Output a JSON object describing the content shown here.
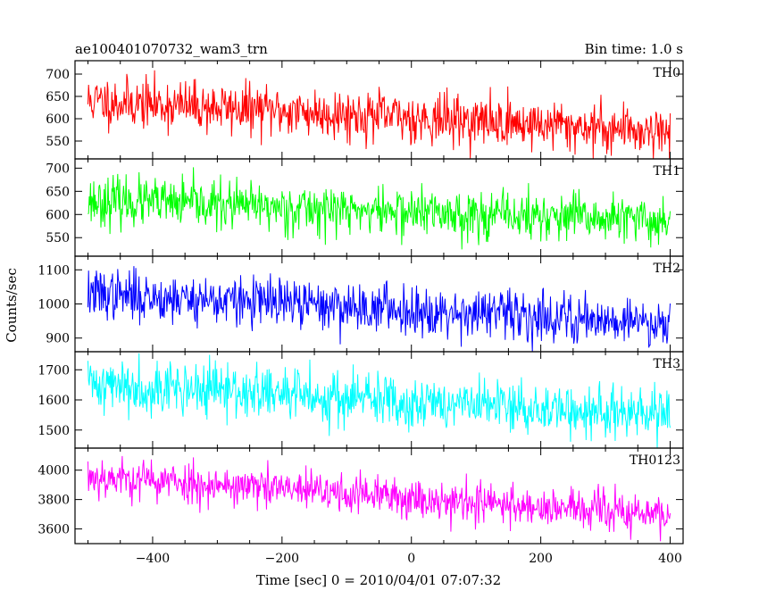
{
  "header": {
    "title": "ae100401070732_wam3_trn",
    "bin_time": "Bin time: 1.0 s"
  },
  "chart_data": {
    "type": "line",
    "title": "ae100401070732_wam3_trn",
    "xlabel": "Time [sec] 0 = 2010/04/01 07:07:32",
    "ylabel": "Counts/sec",
    "xlim": [
      -520,
      420
    ],
    "x_range": [
      -500,
      400
    ],
    "x_step": 1.0,
    "xticks": [
      -400,
      -200,
      0,
      200,
      400
    ],
    "grid": false,
    "panels": [
      {
        "name": "TH0",
        "color": "#ff0000",
        "ylim": [
          510,
          730
        ],
        "yticks": [
          550,
          600,
          650,
          700
        ],
        "trend_start": 640,
        "trend_end": 572,
        "noise": 28,
        "seed": 11
      },
      {
        "name": "TH1",
        "color": "#00ff00",
        "ylim": [
          510,
          720
        ],
        "yticks": [
          550,
          600,
          650,
          700
        ],
        "trend_start": 630,
        "trend_end": 585,
        "noise": 26,
        "seed": 23
      },
      {
        "name": "TH2",
        "color": "#0000ff",
        "ylim": [
          860,
          1140
        ],
        "yticks": [
          900,
          1000,
          1100
        ],
        "trend_start": 1030,
        "trend_end": 945,
        "noise": 36,
        "seed": 37
      },
      {
        "name": "TH3",
        "color": "#00ffff",
        "ylim": [
          1440,
          1760
        ],
        "yticks": [
          1500,
          1600,
          1700
        ],
        "trend_start": 1655,
        "trend_end": 1545,
        "noise": 45,
        "seed": 41
      },
      {
        "name": "TH0123",
        "color": "#ff00ff",
        "ylim": [
          3500,
          4150
        ],
        "yticks": [
          3600,
          3800,
          4000
        ],
        "trend_start": 3960,
        "trend_end": 3690,
        "noise": 70,
        "seed": 53
      }
    ]
  }
}
